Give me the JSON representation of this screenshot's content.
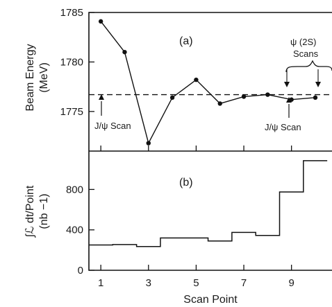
{
  "chart_data": [
    {
      "panel": "(a)",
      "type": "line",
      "ylabel_line1": "Beam Energy",
      "ylabel_line2": "(MeV)",
      "ylim": [
        1771,
        1785
      ],
      "yticks": [
        1775,
        1780,
        1785
      ],
      "x": [
        1,
        2,
        3,
        4,
        5,
        6,
        7,
        8,
        9,
        10
      ],
      "y": [
        1784.1,
        1781.0,
        1771.8,
        1776.4,
        1778.2,
        1775.8,
        1776.5,
        1776.7,
        1776.2,
        1776.4
      ],
      "reference_line": 1776.7,
      "annotations": {
        "left_scan": "J/ψ Scan",
        "right_scan": "J/ψ Scan",
        "psi_line1": "ψ (2S)",
        "psi_line2": "Scans"
      }
    },
    {
      "panel": "(b)",
      "type": "step",
      "ylabel_line1": "∫ℒ dt/Point",
      "ylabel_line2": "(nb −1)",
      "ylim": [
        0,
        1180
      ],
      "yticks": [
        0,
        400,
        800
      ],
      "x": [
        1,
        2,
        3,
        4,
        5,
        6,
        7,
        8,
        9,
        10
      ],
      "y": [
        250,
        255,
        235,
        320,
        320,
        290,
        375,
        345,
        775,
        1085
      ]
    }
  ],
  "x_axis": {
    "label": "Scan Point",
    "ticks": [
      1,
      3,
      5,
      7,
      9
    ],
    "xlim": [
      0.5,
      10.7
    ]
  }
}
